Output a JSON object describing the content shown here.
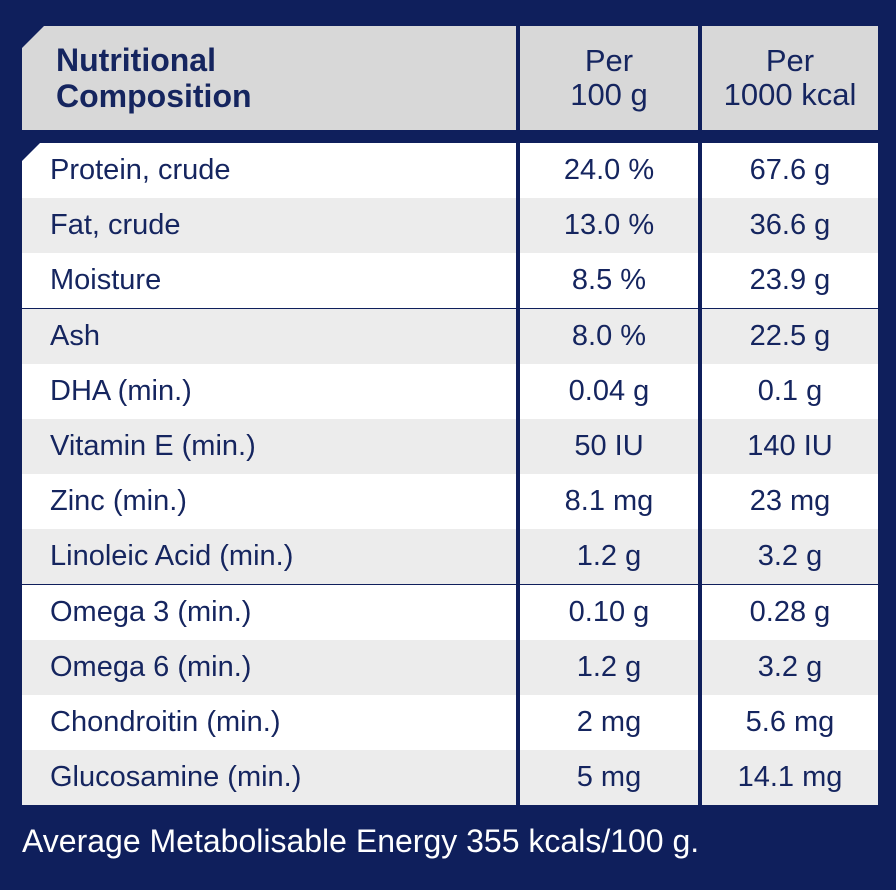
{
  "table": {
    "header": {
      "name_line1": "Nutritional",
      "name_line2": "Composition",
      "col1_line1": "Per",
      "col1_line2": "100 g",
      "col2_line1": "Per",
      "col2_line2": "1000 kcal"
    },
    "rows": [
      {
        "name": "Protein, crude",
        "per100g": "24.0 %",
        "per1000kcal": "67.6 g"
      },
      {
        "name": "Fat, crude",
        "per100g": "13.0 %",
        "per1000kcal": "36.6 g"
      },
      {
        "name": "Moisture",
        "per100g": "8.5 %",
        "per1000kcal": "23.9 g"
      },
      {
        "name": "Ash",
        "per100g": "8.0 %",
        "per1000kcal": "22.5 g"
      },
      {
        "name": "DHA (min.)",
        "per100g": "0.04 g",
        "per1000kcal": "0.1 g"
      },
      {
        "name": "Vitamin E (min.)",
        "per100g": "50 IU",
        "per1000kcal": "140 IU"
      },
      {
        "name": "Zinc (min.)",
        "per100g": "8.1 mg",
        "per1000kcal": "23 mg"
      },
      {
        "name": "Linoleic Acid (min.)",
        "per100g": "1.2 g",
        "per1000kcal": "3.2 g"
      },
      {
        "name": "Omega 3 (min.)",
        "per100g": "0.10 g",
        "per1000kcal": "0.28 g"
      },
      {
        "name": "Omega 6 (min.)",
        "per100g": "1.2 g",
        "per1000kcal": "3.2 g"
      },
      {
        "name": "Chondroitin (min.)",
        "per100g": "2 mg",
        "per1000kcal": "5.6 mg"
      },
      {
        "name": "Glucosamine (min.)",
        "per100g": "5 mg",
        "per1000kcal": "14.1 mg"
      }
    ]
  },
  "footer": "Average Metabolisable Energy 355 kcals/100 g.",
  "colors": {
    "background": "#0f1f5c",
    "header_cell": "#d8d8d8",
    "row_white": "#ffffff",
    "row_grey": "#ececec",
    "text": "#15255f"
  }
}
